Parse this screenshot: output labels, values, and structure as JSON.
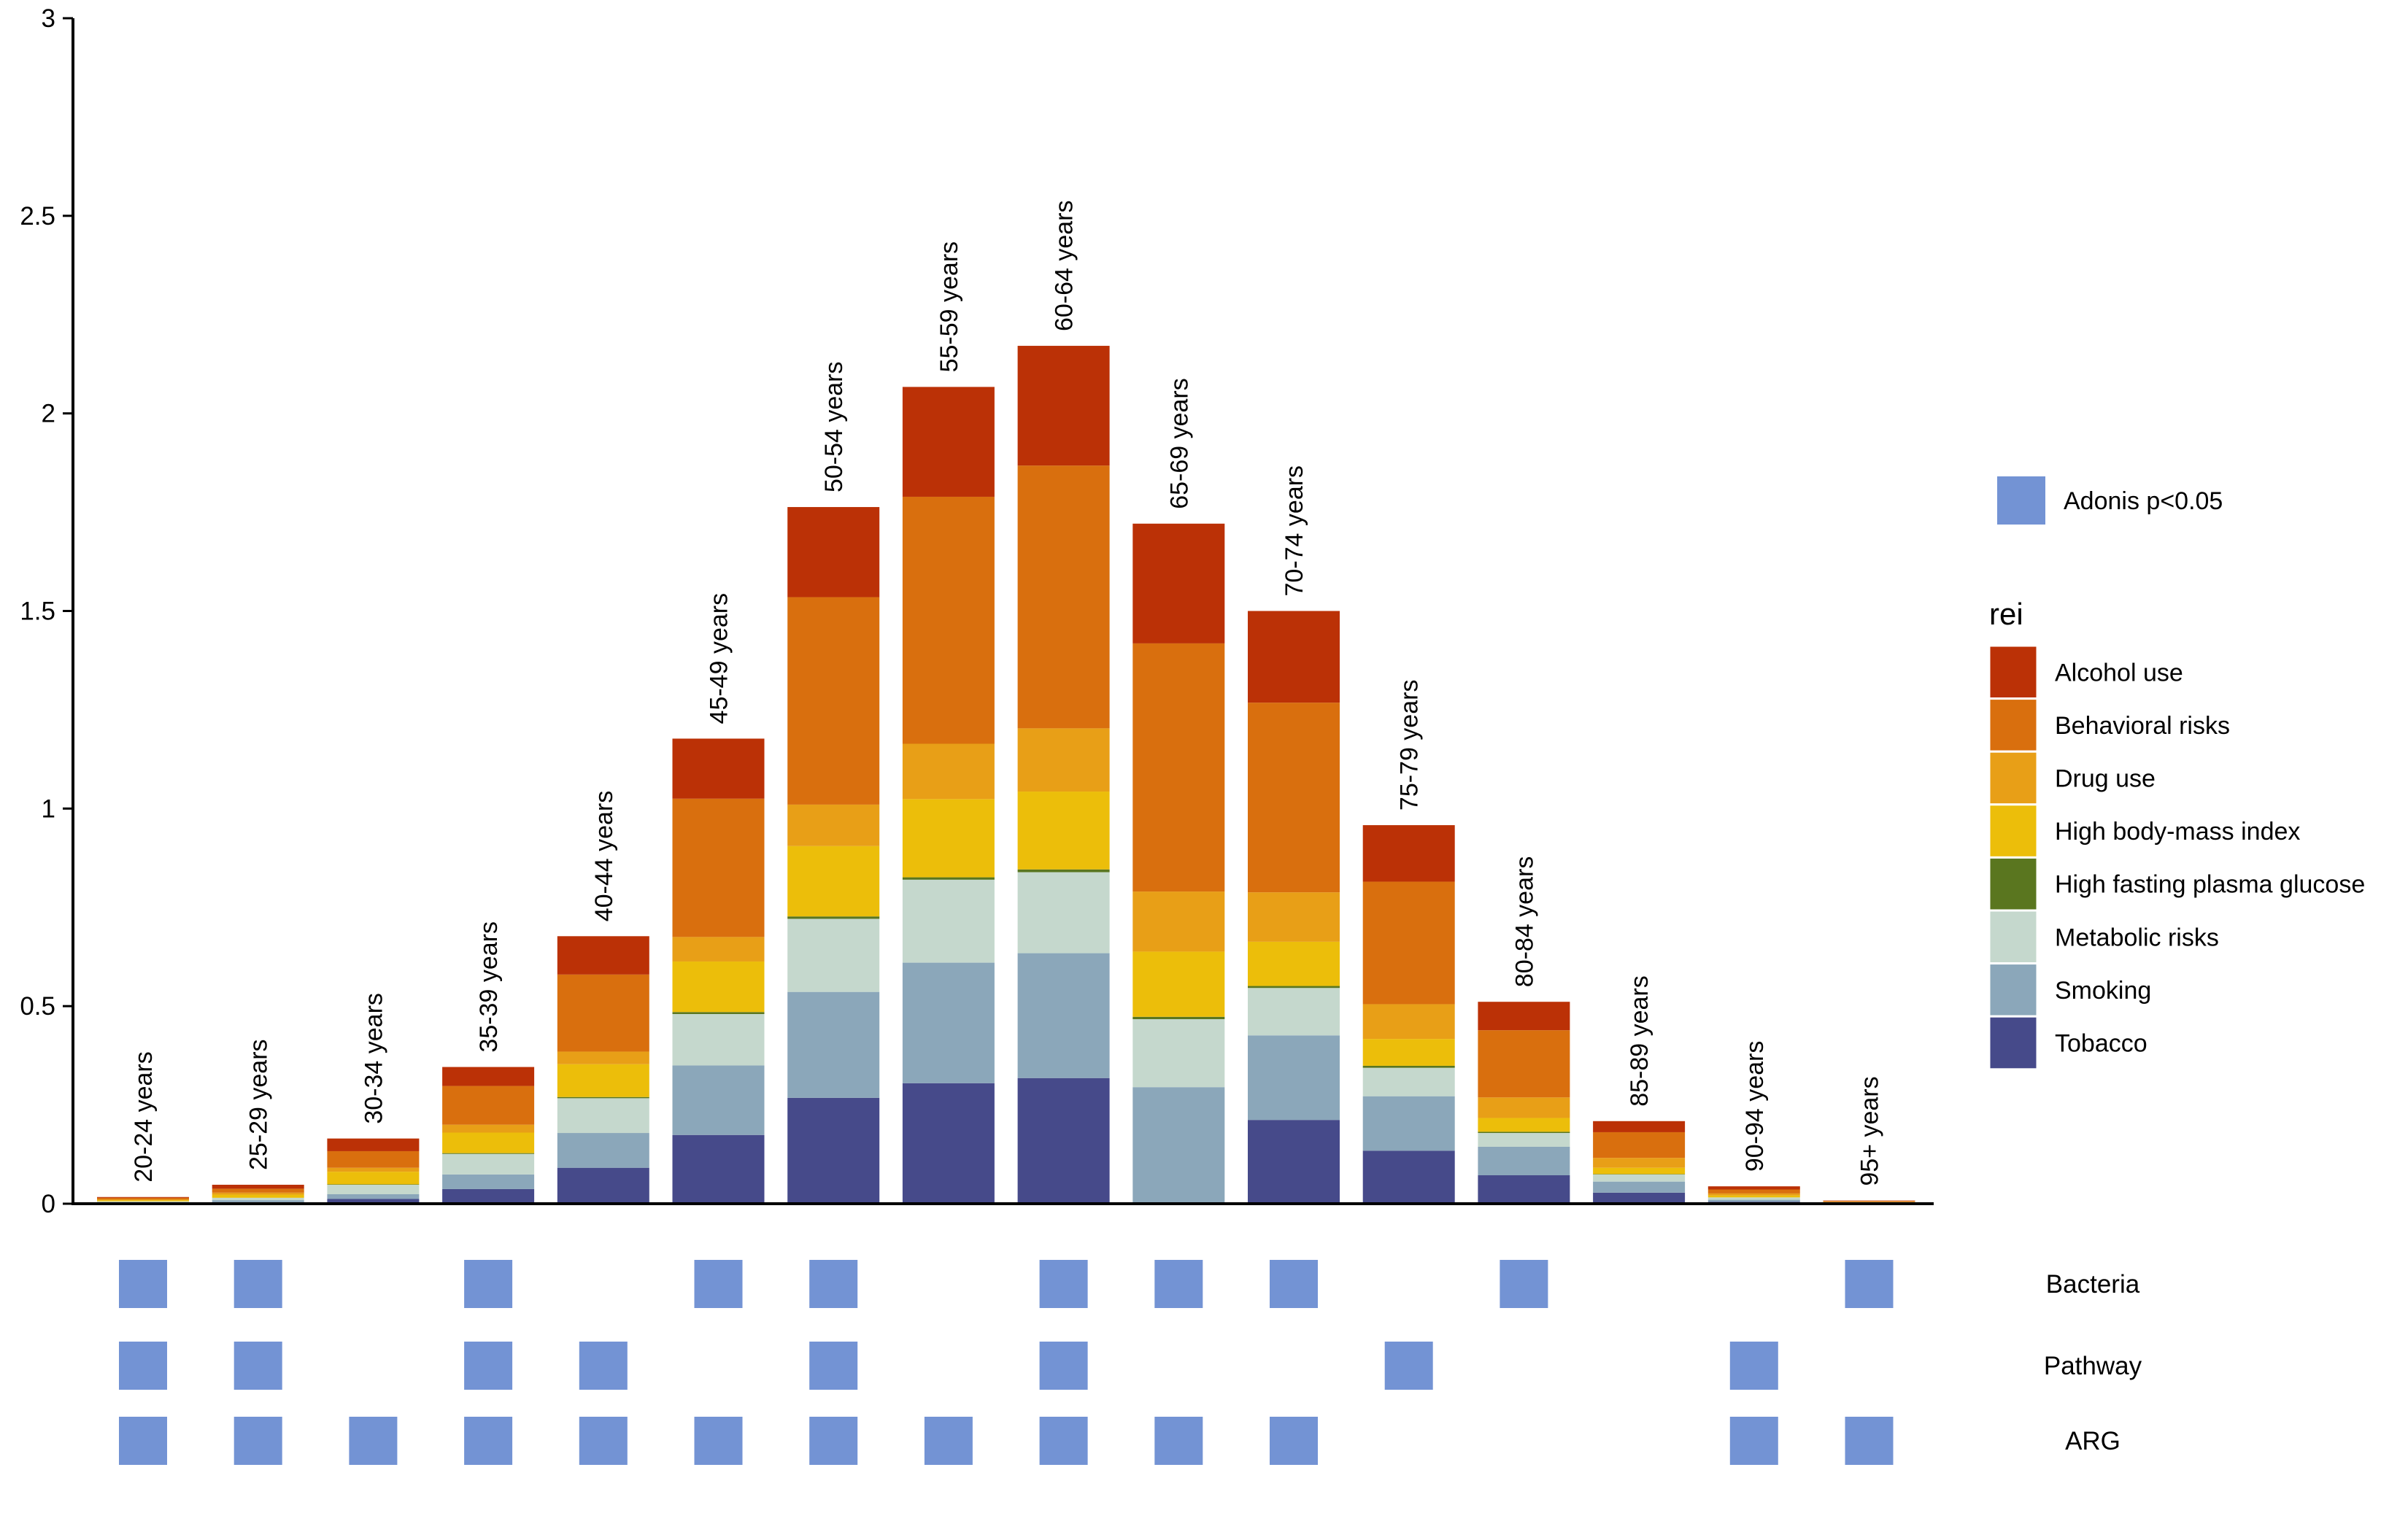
{
  "chart_data": {
    "type": "bar",
    "stacked": true,
    "ylim": [
      0,
      3
    ],
    "yticks": [
      "0",
      "0.5",
      "1",
      "1.5",
      "2",
      "2.5",
      "3"
    ],
    "ytick_values": [
      0,
      0.5,
      1,
      1.5,
      2,
      2.5,
      3
    ],
    "grid": false,
    "categories": [
      "20-24 years",
      "25-29 years",
      "30-34 years",
      "35-39 years",
      "40-44 years",
      "45-49 years",
      "50-54 years",
      "55-59 years",
      "60-64 years",
      "65-69 years",
      "70-74 years",
      "75-79 years",
      "80-84 years",
      "85-89 years",
      "90-94 years",
      "95+ years"
    ],
    "legend_title": "rei",
    "legend_position": "right",
    "series": [
      {
        "name": "Tobacco",
        "color": "#464a8a",
        "values": [
          0.002,
          0.004,
          0.012,
          0.037,
          0.091,
          0.174,
          0.268,
          0.305,
          0.318,
          0.0,
          0.212,
          0.134,
          0.072,
          0.028,
          0.005,
          0.001
        ]
      },
      {
        "name": "Smoking",
        "color": "#8ba7ba",
        "values": [
          0.002,
          0.005,
          0.012,
          0.037,
          0.088,
          0.176,
          0.268,
          0.305,
          0.316,
          0.295,
          0.214,
          0.138,
          0.072,
          0.028,
          0.005,
          0.001
        ]
      },
      {
        "name": "Metabolic risks",
        "color": "#c5d8cd",
        "values": [
          0.002,
          0.006,
          0.024,
          0.052,
          0.088,
          0.13,
          0.185,
          0.21,
          0.205,
          0.172,
          0.12,
          0.072,
          0.035,
          0.018,
          0.006,
          0.001
        ]
      },
      {
        "name": "High fasting plasma glucose",
        "color": "#5a761f",
        "values": [
          0.0,
          0.0,
          0.001,
          0.002,
          0.003,
          0.005,
          0.006,
          0.006,
          0.007,
          0.006,
          0.005,
          0.005,
          0.003,
          0.001,
          0.0,
          0.0
        ]
      },
      {
        "name": "High body-mass index",
        "color": "#ecbe0a",
        "values": [
          0.003,
          0.008,
          0.032,
          0.052,
          0.083,
          0.128,
          0.178,
          0.198,
          0.197,
          0.165,
          0.112,
          0.068,
          0.035,
          0.016,
          0.005,
          0.001
        ]
      },
      {
        "name": "Drug use",
        "color": "#e89f17",
        "values": [
          0.002,
          0.005,
          0.01,
          0.02,
          0.032,
          0.062,
          0.105,
          0.14,
          0.16,
          0.152,
          0.125,
          0.088,
          0.052,
          0.025,
          0.005,
          0.001
        ]
      },
      {
        "name": "Behavioral risks",
        "color": "#d96f0e",
        "values": [
          0.004,
          0.01,
          0.042,
          0.098,
          0.195,
          0.35,
          0.525,
          0.625,
          0.665,
          0.628,
          0.48,
          0.31,
          0.17,
          0.065,
          0.01,
          0.002
        ]
      },
      {
        "name": "Alcohol use",
        "color": "#bb3106",
        "values": [
          0.002,
          0.01,
          0.032,
          0.048,
          0.097,
          0.152,
          0.228,
          0.278,
          0.303,
          0.303,
          0.232,
          0.143,
          0.072,
          0.028,
          0.008,
          0.001
        ]
      }
    ],
    "significance": {
      "legend_label": "Adonis p<0.05",
      "color": "#7393d4",
      "rows": [
        {
          "name": "Bacteria",
          "flags": [
            1,
            1,
            0,
            1,
            0,
            1,
            1,
            0,
            1,
            1,
            1,
            0,
            1,
            0,
            0,
            1
          ]
        },
        {
          "name": "Pathway",
          "flags": [
            1,
            1,
            0,
            1,
            1,
            0,
            1,
            0,
            1,
            0,
            0,
            1,
            0,
            0,
            1,
            0
          ]
        },
        {
          "name": "ARG",
          "flags": [
            1,
            1,
            1,
            1,
            1,
            1,
            1,
            1,
            1,
            1,
            1,
            0,
            0,
            0,
            1,
            1
          ]
        }
      ]
    }
  }
}
